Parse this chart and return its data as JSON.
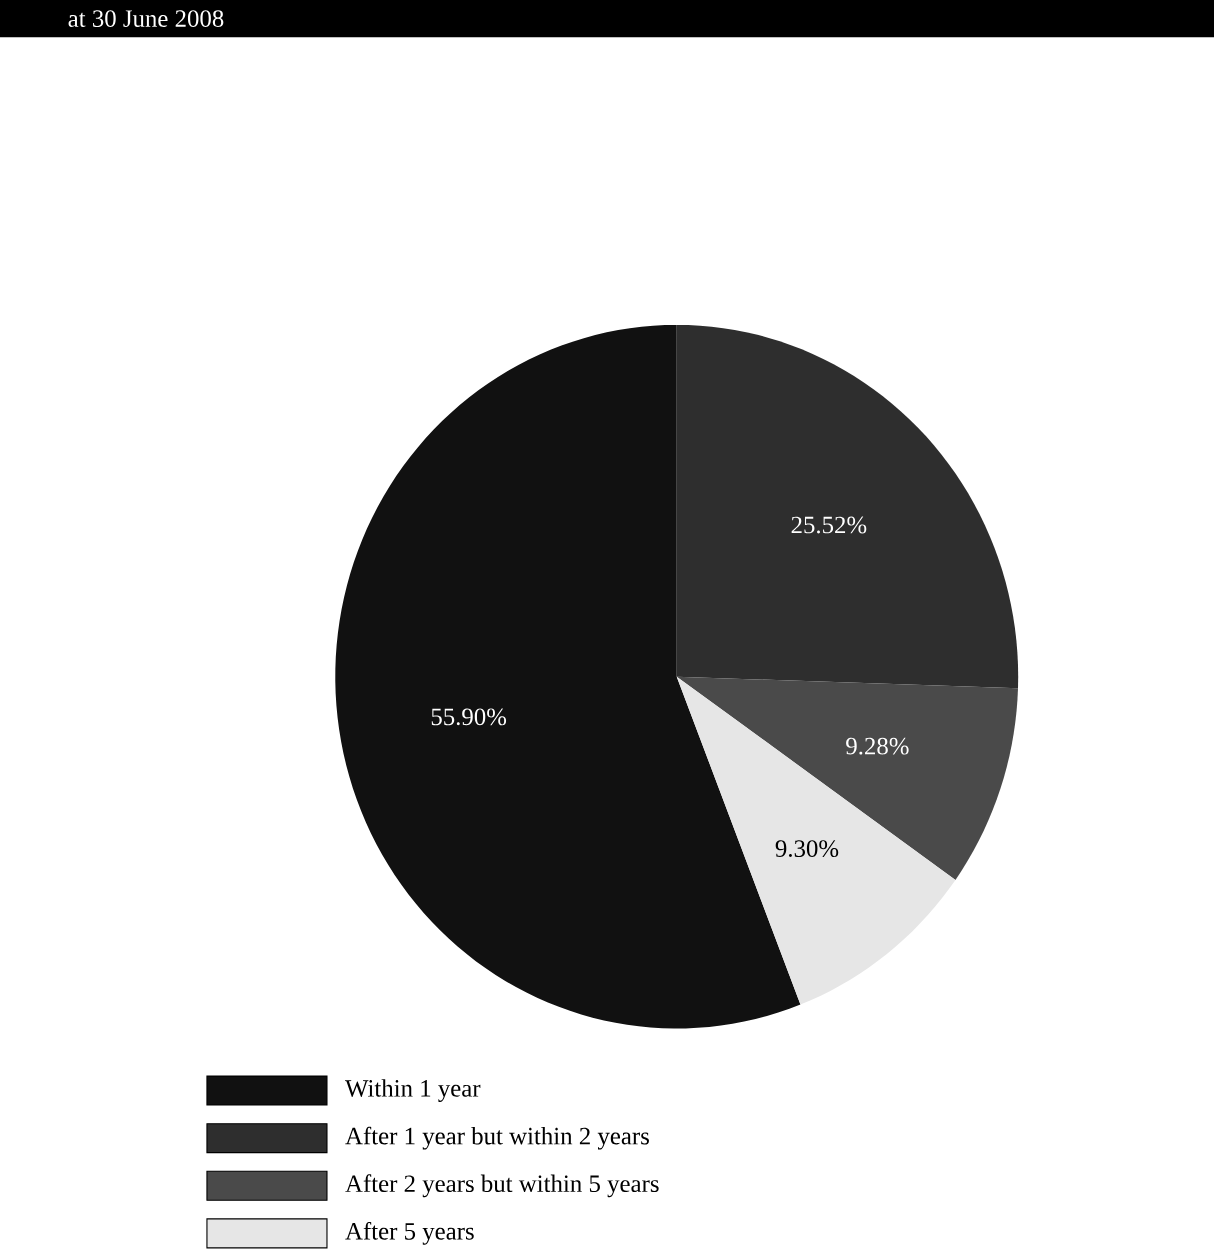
{
  "chart_data": {
    "type": "pie",
    "title": "at 30 June 2008",
    "categories": [
      "Within 1 year",
      "After 1 year but within 2 years",
      "After 2 years but within 5 years",
      "After 5 years"
    ],
    "values": [
      55.9,
      25.52,
      9.28,
      9.3
    ],
    "value_labels": [
      "55.90%",
      "25.52%",
      "9.28%",
      "9.30%"
    ],
    "colors": [
      "#111111",
      "#2e2e2e",
      "#4a4a4a",
      "#e6e6e6"
    ],
    "legend": "bottom left"
  }
}
